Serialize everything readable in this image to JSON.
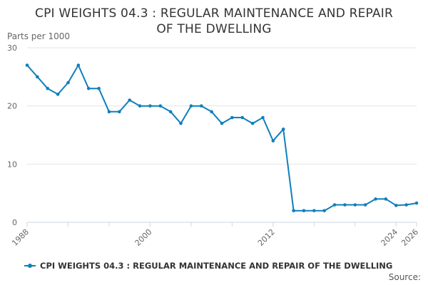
{
  "title_line1": "CPI WEIGHTS 04.3 : REGULAR MAINTENANCE AND REPAIR",
  "title_line2": "OF THE DWELLING",
  "y_axis_label": "Parts per 1000",
  "source_label": "Source:",
  "colors": {
    "series": "#0f7fbc",
    "grid": "#e6e6e6",
    "axis": "#ccd6eb",
    "text": "#666666"
  },
  "chart_data": {
    "type": "line",
    "title": "CPI WEIGHTS 04.3 : REGULAR MAINTENANCE AND REPAIR OF THE DWELLING",
    "ylabel": "Parts per 1000",
    "xlabel": "",
    "xlim": [
      1988,
      2026
    ],
    "ylim": [
      0,
      30
    ],
    "x_ticks": [
      1988,
      2000,
      2012,
      2024,
      2026
    ],
    "y_ticks": [
      0,
      10,
      20,
      30
    ],
    "grid": true,
    "legend_position": "bottom",
    "series": [
      {
        "name": "CPI WEIGHTS 04.3 : REGULAR MAINTENANCE AND REPAIR OF THE DWELLING",
        "x": [
          1988,
          1989,
          1990,
          1991,
          1992,
          1993,
          1994,
          1995,
          1996,
          1997,
          1998,
          1999,
          2000,
          2001,
          2002,
          2003,
          2004,
          2005,
          2006,
          2007,
          2008,
          2009,
          2010,
          2011,
          2012,
          2013,
          2014,
          2015,
          2016,
          2017,
          2018,
          2019,
          2020,
          2021,
          2022,
          2023,
          2024,
          2025,
          2026
        ],
        "values": [
          27,
          25,
          23,
          22,
          24,
          27,
          23,
          23,
          19,
          19,
          21,
          20,
          20,
          20,
          19,
          17,
          20,
          20,
          19,
          17,
          18,
          18,
          17,
          18,
          14,
          16,
          2,
          2,
          2,
          2,
          3,
          3,
          3,
          3,
          4,
          4,
          2.9,
          3,
          3.3
        ]
      }
    ]
  }
}
